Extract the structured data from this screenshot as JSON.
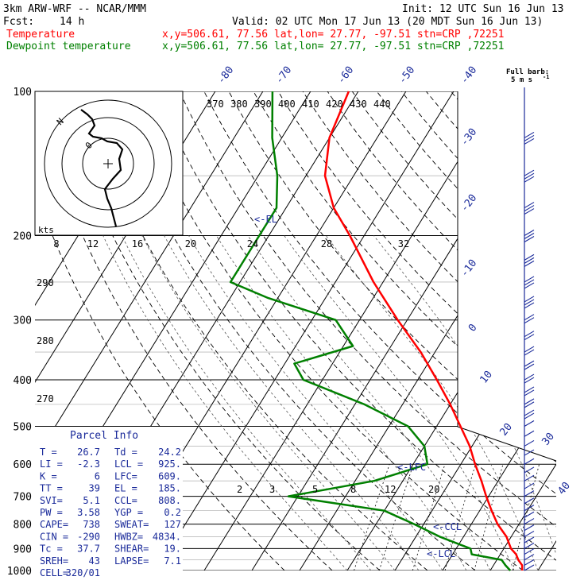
{
  "header": {
    "model": "3km ARW-WRF -- NCAR/MMM",
    "init": "Init: 12 UTC Sun 16 Jun 13",
    "fcst_label": "Fcst:",
    "fcst_value": "14 h",
    "valid": "Valid: 02 UTC Mon 17 Jun 13 (20 MDT Sun 16 Jun 13)",
    "temp_label": "Temperature",
    "temp_loc": "x,y=506.61, 77.56   lat,lon= 27.77, -97.51   stn=CRP ,72251",
    "dew_label": "Dewpoint temperature",
    "dew_loc": "x,y=506.61, 77.56   lat,lon= 27.77, -97.51   stn=CRP ,72251"
  },
  "colors": {
    "temperature": "#ff0000",
    "dewpoint": "#008000",
    "labels": "#1a2a9a",
    "grid": "#000000",
    "wind": "#1a2a9a"
  },
  "wind_legend": {
    "title": "Full barb:",
    "value": "5 m s",
    "exp": "-1"
  },
  "pressure_labels": [
    "100",
    "200",
    "300",
    "400",
    "500",
    "600",
    "700",
    "800",
    "900",
    "1000"
  ],
  "isotherm_labels_top": [
    "-80",
    "-70",
    "-60",
    "-50",
    "-40"
  ],
  "isotherm_labels_right": [
    "-30",
    "-20",
    "-10",
    "0",
    "10",
    "20",
    "30",
    "40"
  ],
  "theta_e_labels": [
    "370",
    "380",
    "390",
    "400",
    "410",
    "420",
    "430",
    "440"
  ],
  "theta_labels": [
    "290",
    "280",
    "270"
  ],
  "mixing_ratio_labels": [
    "2",
    "3",
    "5",
    "8",
    "12",
    "20"
  ],
  "hodograph": {
    "units": "kts",
    "speed_labels": [
      "8",
      "12",
      "16",
      "20",
      "24",
      "28",
      "32"
    ],
    "north_label": "N",
    "inner_label": "0"
  },
  "markers": {
    "el": "<-EL",
    "lfc": "<-LFC",
    "ccl": "<-CCL",
    "lcl": "<-LCL"
  },
  "parcel_info": {
    "title": "Parcel Info",
    "rows": [
      [
        "T  =",
        "26.7",
        "Td =",
        "24.2"
      ],
      [
        "LI =",
        "-2.3",
        "LCL =",
        "925."
      ],
      [
        "K  =",
        "6",
        "LFC=",
        "609."
      ],
      [
        "TT =",
        "39",
        "EL =",
        "185."
      ],
      [
        "SVI=",
        "5.1",
        "CCL=",
        "808."
      ],
      [
        "PW =",
        "3.58",
        "YGP =",
        "0.2"
      ],
      [
        "CAPE=",
        "738",
        "SWEAT=",
        "127"
      ],
      [
        "CIN =",
        "-290",
        "HWBZ=",
        "4834."
      ],
      [
        "Tc =",
        "37.7",
        "SHEAR=",
        "19."
      ],
      [
        "SREH=",
        "43",
        "LAPSE=",
        "7.1"
      ],
      [
        "CELL=",
        "320/01",
        "",
        ""
      ]
    ]
  },
  "chart_data": {
    "type": "line",
    "title": "",
    "ylabel": "",
    "xlabel": "",
    "y_scale": "log-pressure",
    "y_ticks": [
      100,
      200,
      300,
      400,
      500,
      600,
      700,
      800,
      900,
      1000
    ],
    "series": [
      {
        "name": "Temperature",
        "color": "#ff0000",
        "points": [
          {
            "p": 1000,
            "t": 26.7
          },
          {
            "p": 975,
            "t": 26.0
          },
          {
            "p": 950,
            "t": 24.5
          },
          {
            "p": 925,
            "t": 23.3
          },
          {
            "p": 900,
            "t": 21.5
          },
          {
            "p": 850,
            "t": 19.0
          },
          {
            "p": 800,
            "t": 15.5
          },
          {
            "p": 750,
            "t": 12.5
          },
          {
            "p": 700,
            "t": 9.5
          },
          {
            "p": 650,
            "t": 6.5
          },
          {
            "p": 600,
            "t": 3.0
          },
          {
            "p": 550,
            "t": -0.5
          },
          {
            "p": 500,
            "t": -5.0
          },
          {
            "p": 450,
            "t": -10.0
          },
          {
            "p": 400,
            "t": -16.0
          },
          {
            "p": 350,
            "t": -23.0
          },
          {
            "p": 300,
            "t": -32.0
          },
          {
            "p": 250,
            "t": -42.0
          },
          {
            "p": 200,
            "t": -53.0
          },
          {
            "p": 175,
            "t": -60.0
          },
          {
            "p": 150,
            "t": -66.0
          },
          {
            "p": 125,
            "t": -70.0
          },
          {
            "p": 100,
            "t": -72.0
          }
        ]
      },
      {
        "name": "Dewpoint temperature",
        "color": "#008000",
        "points": [
          {
            "p": 1000,
            "t": 24.2
          },
          {
            "p": 975,
            "t": 22.5
          },
          {
            "p": 950,
            "t": 21.0
          },
          {
            "p": 925,
            "t": 14.0
          },
          {
            "p": 900,
            "t": 13.0
          },
          {
            "p": 850,
            "t": 5.0
          },
          {
            "p": 800,
            "t": -2.0
          },
          {
            "p": 750,
            "t": -10.0
          },
          {
            "p": 700,
            "t": -32.0
          },
          {
            "p": 650,
            "t": -16.0
          },
          {
            "p": 600,
            "t": -7.0
          },
          {
            "p": 550,
            "t": -10.0
          },
          {
            "p": 500,
            "t": -16.0
          },
          {
            "p": 450,
            "t": -28.0
          },
          {
            "p": 400,
            "t": -44.0
          },
          {
            "p": 370,
            "t": -48.0
          },
          {
            "p": 340,
            "t": -38.0
          },
          {
            "p": 300,
            "t": -45.0
          },
          {
            "p": 270,
            "t": -62.0
          },
          {
            "p": 250,
            "t": -72.0
          },
          {
            "p": 200,
            "t": -72.0
          },
          {
            "p": 175,
            "t": -72.0
          },
          {
            "p": 150,
            "t": -76.0
          },
          {
            "p": 125,
            "t": -82.0
          },
          {
            "p": 100,
            "t": -88.0
          }
        ]
      }
    ]
  }
}
